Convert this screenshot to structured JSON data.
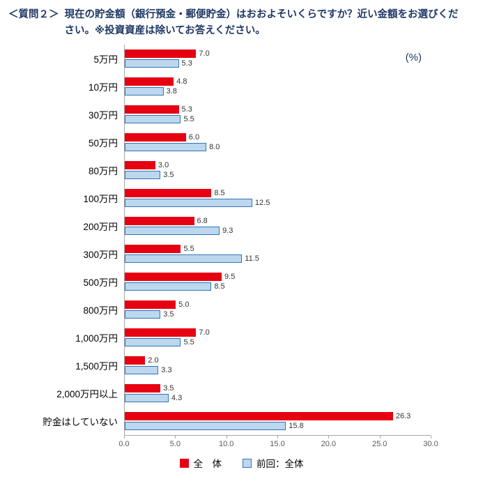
{
  "title": {
    "prefix": "＜質問２＞",
    "line1": "現在の貯金額（銀行預金・郵便貯金）はおおよそいくらですか？近い金額をお選びくだ",
    "line2": "さい。※投資資産は除いてお答えください。"
  },
  "percent_label": "(%)",
  "chart_data": {
    "type": "bar",
    "orientation": "horizontal",
    "title": "現在の貯金額（銀行預金・郵便貯金）",
    "categories": [
      "5万円",
      "10万円",
      "30万円",
      "50万円",
      "80万円",
      "100万円",
      "200万円",
      "300万円",
      "500万円",
      "800万円",
      "1,000万円",
      "1,500万円",
      "2,000万円以上",
      "貯金はしていない"
    ],
    "series": [
      {
        "name": "全　体",
        "color": "#e60012",
        "values": [
          7.0,
          4.8,
          5.3,
          6.0,
          3.0,
          8.5,
          6.8,
          5.5,
          9.5,
          5.0,
          7.0,
          2.0,
          3.5,
          26.3
        ]
      },
      {
        "name": "前回：全体",
        "color": "#bdd7ee",
        "border": "#2e75b6",
        "values": [
          5.3,
          3.8,
          5.5,
          8.0,
          3.5,
          12.5,
          9.3,
          11.5,
          8.5,
          3.5,
          5.5,
          3.3,
          4.3,
          15.8
        ]
      }
    ],
    "xlim": [
      0,
      30
    ],
    "x_ticks": [
      0.0,
      5.0,
      10.0,
      15.0,
      20.0,
      25.0,
      30.0
    ],
    "unit": "%",
    "grid": false,
    "legend_position": "bottom"
  },
  "legend": {
    "items": [
      {
        "label": "全　体",
        "color": "#e60012"
      },
      {
        "label": "前回：全体",
        "color": "#bdd7ee",
        "border": "#2e75b6"
      }
    ]
  }
}
